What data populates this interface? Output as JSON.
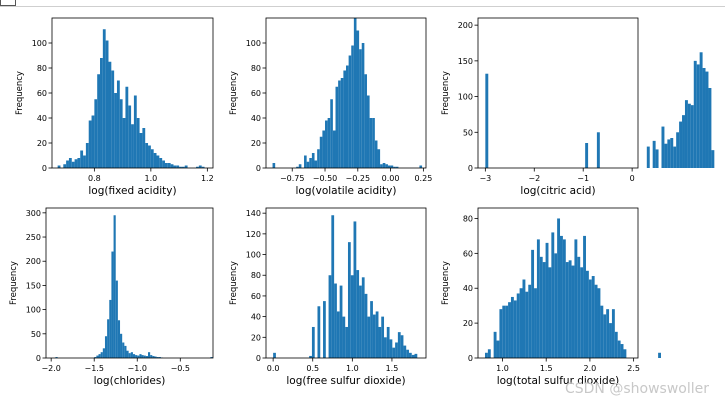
{
  "watermark": "CSDN @showswoller",
  "chart_data": [
    {
      "type": "histogram",
      "id": "fixed-acidity",
      "xlabel": "log(fixed acidity)",
      "ylabel": "Frequency",
      "xlim": [
        0.65,
        1.22
      ],
      "ylim": [
        0,
        120
      ],
      "xticks": [
        0.8,
        1.0,
        1.2
      ],
      "xtick_labels": [
        "0.8",
        "1.0",
        "1.2"
      ],
      "yticks": [
        0,
        20,
        40,
        60,
        80,
        100
      ],
      "ytick_labels": [
        "0",
        "20",
        "40",
        "60",
        "80",
        "100"
      ],
      "bin_start": 0.67,
      "bin_width": 0.01,
      "values": [
        2,
        0,
        3,
        6,
        8,
        5,
        7,
        8,
        14,
        10,
        20,
        38,
        42,
        55,
        75,
        88,
        111,
        102,
        85,
        78,
        60,
        70,
        55,
        40,
        65,
        50,
        35,
        58,
        40,
        28,
        32,
        20,
        18,
        15,
        12,
        10,
        8,
        6,
        4,
        4,
        3,
        2,
        2,
        1,
        1,
        2,
        0,
        0,
        0,
        1,
        2,
        1
      ]
    },
    {
      "type": "histogram",
      "id": "volatile-acidity",
      "xlabel": "log(volatile acidity)",
      "ylabel": "Frequency",
      "xlim": [
        -0.95,
        0.27
      ],
      "ylim": [
        0,
        120
      ],
      "xticks": [
        -0.75,
        -0.5,
        -0.25,
        0.0,
        0.25
      ],
      "xtick_labels": [
        "−0.75",
        "−0.50",
        "−0.25",
        "0.00",
        "0.25"
      ],
      "yticks": [
        0,
        20,
        40,
        60,
        80,
        100
      ],
      "ytick_labels": [
        "0",
        "20",
        "40",
        "60",
        "80",
        "100"
      ],
      "bin_start": -0.9,
      "bin_width": 0.02,
      "values": [
        4,
        0,
        0,
        0,
        0,
        0,
        0,
        0,
        0,
        1,
        3,
        0,
        10,
        5,
        8,
        12,
        6,
        15,
        25,
        30,
        38,
        40,
        55,
        30,
        65,
        70,
        72,
        78,
        82,
        90,
        98,
        120,
        110,
        95,
        100,
        75,
        58,
        40,
        40,
        22,
        15,
        3,
        4,
        3,
        2,
        2,
        1,
        1,
        0,
        0,
        0,
        0,
        0,
        0,
        0,
        0,
        2,
        0,
        0
      ]
    },
    {
      "type": "histogram",
      "id": "citric-acid",
      "xlabel": "log(citric acid)",
      "ylabel": "Frequency",
      "xlim": [
        -3.15,
        0.12
      ],
      "ylim": [
        0,
        210
      ],
      "xticks": [
        -3,
        -2,
        -1,
        0
      ],
      "xtick_labels": [
        "−3",
        "−2",
        "−1",
        "0"
      ],
      "yticks": [
        0,
        50,
        100,
        150,
        200
      ],
      "ytick_labels": [
        "0",
        "50",
        "100",
        "150",
        "200"
      ],
      "bin_start": -3.0,
      "bin_width": 0.06,
      "values": [
        132,
        0,
        0,
        0,
        0,
        0,
        0,
        0,
        0,
        0,
        0,
        0,
        0,
        0,
        0,
        0,
        0,
        0,
        0,
        0,
        0,
        0,
        0,
        0,
        0,
        0,
        0,
        0,
        0,
        0,
        0,
        0,
        0,
        0,
        35,
        0,
        0,
        0,
        50,
        0,
        0,
        0,
        0,
        0,
        0,
        0,
        0,
        0,
        0,
        0,
        0,
        0,
        0,
        0,
        0,
        30,
        0,
        38,
        26,
        0,
        58,
        34,
        40,
        42,
        30,
        50,
        65,
        74,
        95,
        90,
        88,
        150,
        145,
        162,
        140,
        135,
        112,
        25
      ]
    },
    {
      "type": "histogram",
      "id": "chlorides",
      "xlabel": "log(chlorides)",
      "ylabel": "Frequency",
      "xlim": [
        -2.06,
        -0.12
      ],
      "ylim": [
        0,
        310
      ],
      "xticks": [
        -2.0,
        -1.5,
        -1.0,
        -0.5
      ],
      "xtick_labels": [
        "−2.0",
        "−1.5",
        "−1.0",
        "−0.5"
      ],
      "yticks": [
        0,
        50,
        100,
        150,
        200,
        250,
        300
      ],
      "ytick_labels": [
        "0",
        "50",
        "100",
        "150",
        "200",
        "250",
        "300"
      ],
      "bin_start": -1.95,
      "bin_width": 0.025,
      "values": [
        2,
        0,
        0,
        0,
        0,
        0,
        0,
        0,
        0,
        0,
        0,
        0,
        0,
        0,
        0,
        0,
        0,
        0,
        2,
        5,
        8,
        12,
        20,
        45,
        80,
        120,
        220,
        295,
        160,
        78,
        50,
        32,
        25,
        15,
        10,
        12,
        8,
        6,
        5,
        8,
        6,
        5,
        4,
        12,
        6,
        4,
        3,
        2,
        2,
        1,
        0,
        0,
        0,
        0,
        0,
        0,
        0,
        0,
        0,
        0,
        0,
        0,
        0,
        0,
        0,
        0,
        0,
        0,
        0,
        0,
        0,
        0,
        2
      ]
    },
    {
      "type": "histogram",
      "id": "free-sulfur-dioxide",
      "xlabel": "log(free sulfur dioxide)",
      "ylabel": "Frequency",
      "xlim": [
        -0.09,
        1.93
      ],
      "ylim": [
        0,
        145
      ],
      "xticks": [
        0.0,
        0.5,
        1.0,
        1.5
      ],
      "xtick_labels": [
        "0.0",
        "0.5",
        "1.0",
        "1.5"
      ],
      "yticks": [
        0,
        20,
        40,
        60,
        80,
        100,
        120,
        140
      ],
      "ytick_labels": [
        "0",
        "20",
        "40",
        "60",
        "80",
        "100",
        "120",
        "140"
      ],
      "bin_start": 0.0,
      "bin_width": 0.035,
      "values": [
        5,
        0,
        0,
        0,
        0,
        0,
        0,
        0,
        0,
        0,
        0,
        0,
        0,
        2,
        30,
        0,
        50,
        0,
        55,
        0,
        80,
        138,
        72,
        45,
        70,
        40,
        30,
        112,
        80,
        132,
        85,
        70,
        78,
        62,
        40,
        55,
        42,
        45,
        30,
        40,
        20,
        30,
        18,
        10,
        15,
        25,
        22,
        12,
        8,
        5,
        3,
        4
      ]
    },
    {
      "type": "histogram",
      "id": "total-sulfur-dioxide",
      "xlabel": "log(total sulfur dioxide)",
      "ylabel": "Frequency",
      "xlim": [
        0.72,
        2.55
      ],
      "ylim": [
        0,
        86
      ],
      "xticks": [
        1.0,
        1.5,
        2.0,
        2.5
      ],
      "xtick_labels": [
        "1.0",
        "1.5",
        "2.0",
        "2.5"
      ],
      "yticks": [
        0,
        20,
        40,
        60,
        80
      ],
      "ytick_labels": [
        "0",
        "20",
        "40",
        "60",
        "80"
      ],
      "bin_start": 0.8,
      "bin_width": 0.033,
      "values": [
        3,
        5,
        0,
        15,
        10,
        28,
        30,
        30,
        32,
        35,
        33,
        37,
        40,
        45,
        38,
        42,
        62,
        40,
        68,
        58,
        55,
        66,
        52,
        72,
        60,
        80,
        70,
        68,
        55,
        56,
        53,
        68,
        58,
        52,
        70,
        50,
        45,
        47,
        42,
        40,
        30,
        25,
        28,
        20,
        28,
        15,
        10,
        8,
        5,
        0,
        0,
        0,
        0,
        0,
        0,
        0,
        0,
        0,
        0,
        0,
        3
      ]
    }
  ]
}
